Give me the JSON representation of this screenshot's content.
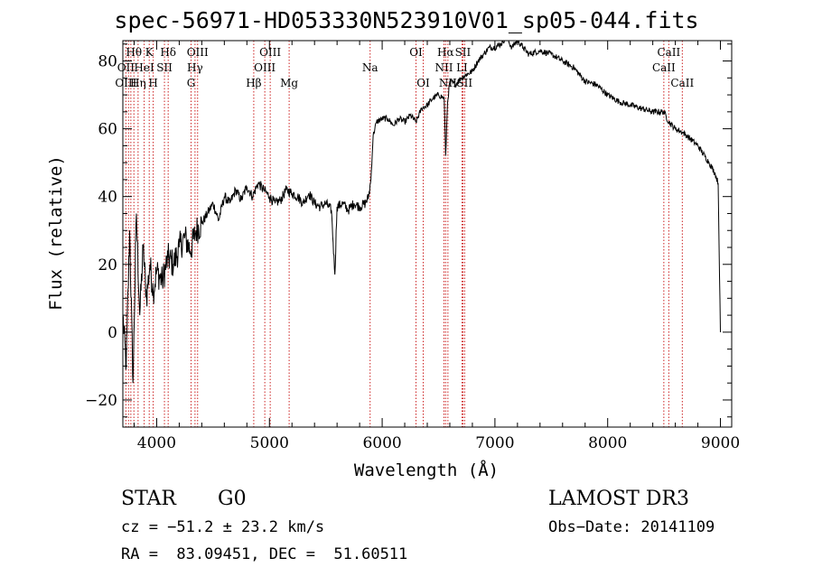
{
  "chart_data": {
    "type": "line",
    "title": "spec-56971-HD053330N523910V01_sp05-044.fits",
    "xlabel": "Wavelength (Å)",
    "ylabel": "Flux (relative)",
    "xlim": [
      3700,
      9100
    ],
    "ylim": [
      -28,
      86
    ],
    "xticks": [
      4000,
      5000,
      6000,
      7000,
      8000,
      9000
    ],
    "xtick_labels": [
      "4000",
      "5000",
      "6000",
      "7000",
      "8000",
      "9000"
    ],
    "yticks": [
      -20,
      0,
      20,
      40,
      60,
      80
    ],
    "ytick_labels": [
      "−20",
      "0",
      "20",
      "40",
      "60",
      "80"
    ],
    "series": [
      {
        "name": "spectrum",
        "x": [
          3700,
          3730,
          3760,
          3790,
          3820,
          3850,
          3880,
          3910,
          3940,
          3970,
          4000,
          4050,
          4100,
          4150,
          4200,
          4250,
          4300,
          4350,
          4400,
          4450,
          4500,
          4550,
          4600,
          4650,
          4700,
          4750,
          4800,
          4850,
          4900,
          4950,
          5000,
          5050,
          5100,
          5150,
          5200,
          5250,
          5300,
          5350,
          5400,
          5450,
          5500,
          5550,
          5580,
          5600,
          5650,
          5700,
          5750,
          5800,
          5850,
          5880,
          5900,
          5920,
          5950,
          6000,
          6050,
          6100,
          6150,
          6200,
          6250,
          6300,
          6350,
          6400,
          6450,
          6500,
          6550,
          6563,
          6580,
          6600,
          6650,
          6700,
          6750,
          6800,
          6850,
          6900,
          6950,
          7000,
          7050,
          7100,
          7150,
          7200,
          7250,
          7300,
          7400,
          7500,
          7600,
          7700,
          7800,
          7900,
          8000,
          8100,
          8200,
          8300,
          8400,
          8498,
          8542,
          8600,
          8662,
          8700,
          8800,
          8900,
          8950,
          8980,
          9000
        ],
        "y": [
          5,
          -10,
          30,
          -15,
          35,
          5,
          25,
          10,
          20,
          12,
          18,
          15,
          22,
          20,
          25,
          28,
          24,
          30,
          32,
          35,
          38,
          33,
          40,
          38,
          42,
          39,
          43,
          40,
          44,
          42,
          40,
          38,
          39,
          42,
          41,
          40,
          38,
          41,
          38,
          37,
          38,
          36,
          17,
          37,
          38,
          36,
          38,
          37,
          38,
          40,
          45,
          58,
          62,
          63,
          63,
          61,
          63,
          62,
          64,
          62,
          66,
          67,
          69,
          70,
          69,
          52,
          68,
          74,
          73,
          75,
          76,
          77,
          80,
          82,
          84,
          84,
          85,
          87,
          84,
          86,
          84,
          82,
          83,
          82,
          80,
          78,
          74,
          73,
          70,
          68,
          67,
          66,
          65,
          65,
          62,
          60,
          59,
          58,
          55,
          50,
          47,
          44,
          0
        ]
      }
    ],
    "line_markers": [
      {
        "label": "Hθ",
        "wavelength": 3798,
        "row": 1
      },
      {
        "label": "OII",
        "wavelength": 3727,
        "row": 2
      },
      {
        "label": "OIII",
        "wavelength": 3727,
        "row": 3
      },
      {
        "label": "HeI",
        "wavelength": 3889,
        "row": 2
      },
      {
        "label": "Hη",
        "wavelength": 3835,
        "row": 3
      },
      {
        "label": "K",
        "wavelength": 3934,
        "row": 1
      },
      {
        "label": "SII",
        "wavelength": 4069,
        "row": 2
      },
      {
        "label": "H",
        "wavelength": 3969,
        "row": 3
      },
      {
        "label": "Hδ",
        "wavelength": 4102,
        "row": 1
      },
      {
        "label": "OIII",
        "wavelength": 4363,
        "row": 1
      },
      {
        "label": "Hγ",
        "wavelength": 4340,
        "row": 2
      },
      {
        "label": "G",
        "wavelength": 4305,
        "row": 3
      },
      {
        "label": "OIII",
        "wavelength": 5007,
        "row": 1
      },
      {
        "label": "OIII",
        "wavelength": 4959,
        "row": 2
      },
      {
        "label": "Hβ",
        "wavelength": 4861,
        "row": 3
      },
      {
        "label": "Mg",
        "wavelength": 5175,
        "row": 3
      },
      {
        "label": "Na",
        "wavelength": 5893,
        "row": 2
      },
      {
        "label": "OI",
        "wavelength": 6300,
        "row": 1
      },
      {
        "label": "OI",
        "wavelength": 6364,
        "row": 3
      },
      {
        "label": "Hα",
        "wavelength": 6563,
        "row": 1
      },
      {
        "label": "SII",
        "wavelength": 6716,
        "row": 1
      },
      {
        "label": "NII",
        "wavelength": 6548,
        "row": 2
      },
      {
        "label": "LI",
        "wavelength": 6708,
        "row": 2
      },
      {
        "label": "NII",
        "wavelength": 6583,
        "row": 3
      },
      {
        "label": "SII",
        "wavelength": 6731,
        "row": 3
      },
      {
        "label": "CaII",
        "wavelength": 8542,
        "row": 1
      },
      {
        "label": "CaII",
        "wavelength": 8498,
        "row": 2
      },
      {
        "label": "CaII",
        "wavelength": 8662,
        "row": 3
      }
    ],
    "marker_lines": [
      3727,
      3750,
      3771,
      3798,
      3835,
      3889,
      3934,
      3969,
      4069,
      4102,
      4305,
      4340,
      4363,
      4861,
      4959,
      5007,
      5175,
      5893,
      6300,
      6364,
      6548,
      6563,
      6583,
      6708,
      6716,
      6731,
      8498,
      8542,
      8662
    ],
    "colors": {
      "spectrum": "#000000",
      "marker": "#cc2222",
      "axes": "#000000"
    }
  },
  "info": {
    "class_label": "STAR",
    "subclass": "G0",
    "survey": "LAMOST DR3",
    "cz": "cz = −51.2 ± 23.2 km/s",
    "obs_date": "Obs−Date: 20141109",
    "coords": "RA =  83.09451, DEC =  51.60511"
  }
}
